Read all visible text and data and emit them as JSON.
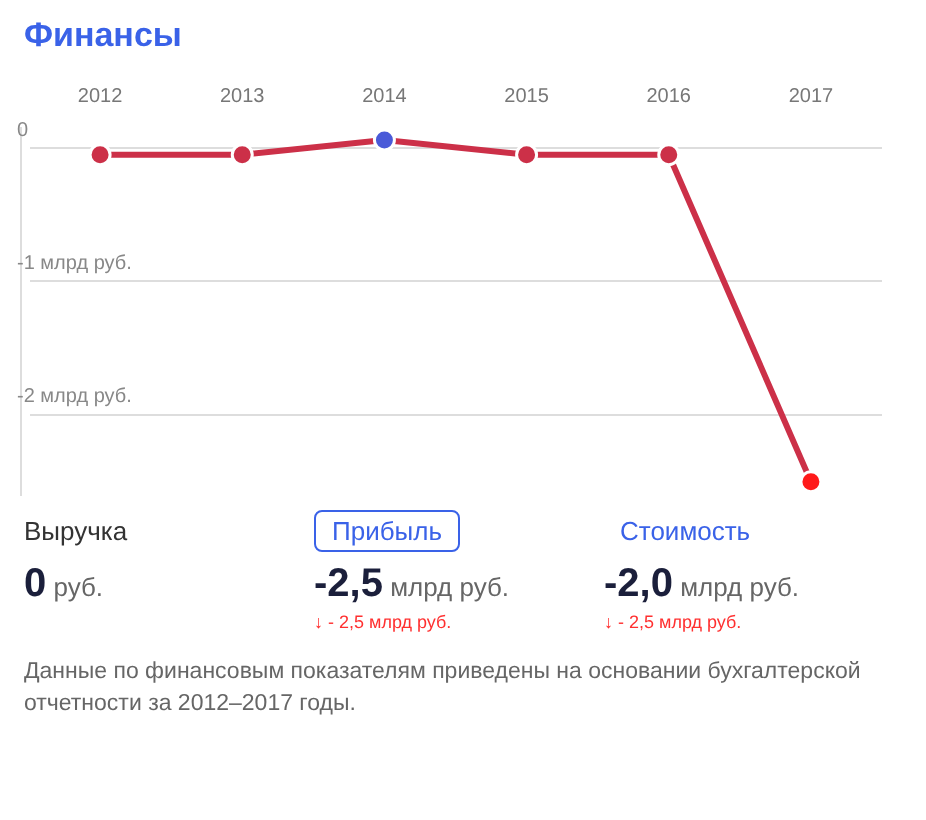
{
  "chart_data": [
    {
      "type": "line",
      "title": "Финансы",
      "categories": [
        "2012",
        "2013",
        "2014",
        "2015",
        "2016",
        "2017"
      ],
      "series": [
        {
          "color": "#cc3048",
          "colors": [
            "#cc3048",
            "#cc3048",
            "#4a5ad8",
            "#cc3048",
            "#cc3048",
            "#ff1a1a"
          ],
          "values": [
            -0.05,
            -0.05,
            0.06,
            -0.05,
            -0.05,
            -2.5
          ]
        }
      ],
      "ylim": [
        -2.6,
        0.15
      ],
      "yticks": [
        {
          "value": 0,
          "label": "0"
        },
        {
          "value": -1,
          "label": "-1 млрд руб."
        },
        {
          "value": -2,
          "label": "-2 млрд руб."
        }
      ],
      "grid": "y",
      "legend": false,
      "marker": "circle",
      "line_style": "solid"
    },
    {
      "type": "other",
      "annotations": [
        "Выручка",
        "Прибыль",
        "Стоимость",
        "0 руб.",
        "-2,5 млрд руб.",
        "-2,0 млрд руб.",
        "↓ - 2,5 млрд руб.",
        "↓ - 2,5 млрд руб.",
        "Данные по финансовым показателям приведены на основании бухгалтерской отчетности за 2012–2017 годы."
      ]
    }
  ]
}
